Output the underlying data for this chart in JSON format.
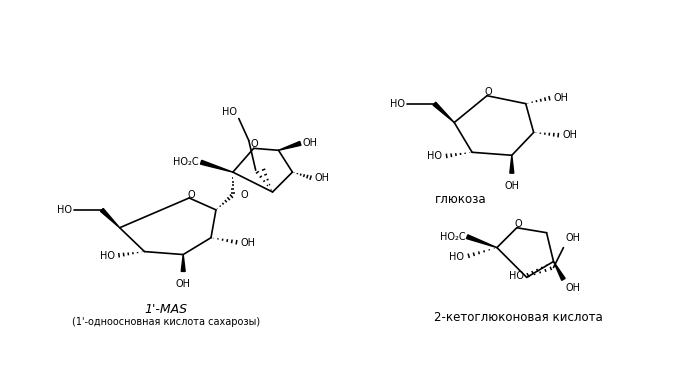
{
  "bg_color": "#ffffff",
  "figsize": [
    6.98,
    3.85
  ],
  "dpi": 100,
  "label_1a": "1'-MAS",
  "label_1b": "(1'-одноосновная кислота сахарозы)",
  "label_2": "глюкоза",
  "label_3": "2-кетоглюконовая кислота",
  "line_color": "#000000",
  "font_size": 7.0,
  "label_font_size": 8.5
}
